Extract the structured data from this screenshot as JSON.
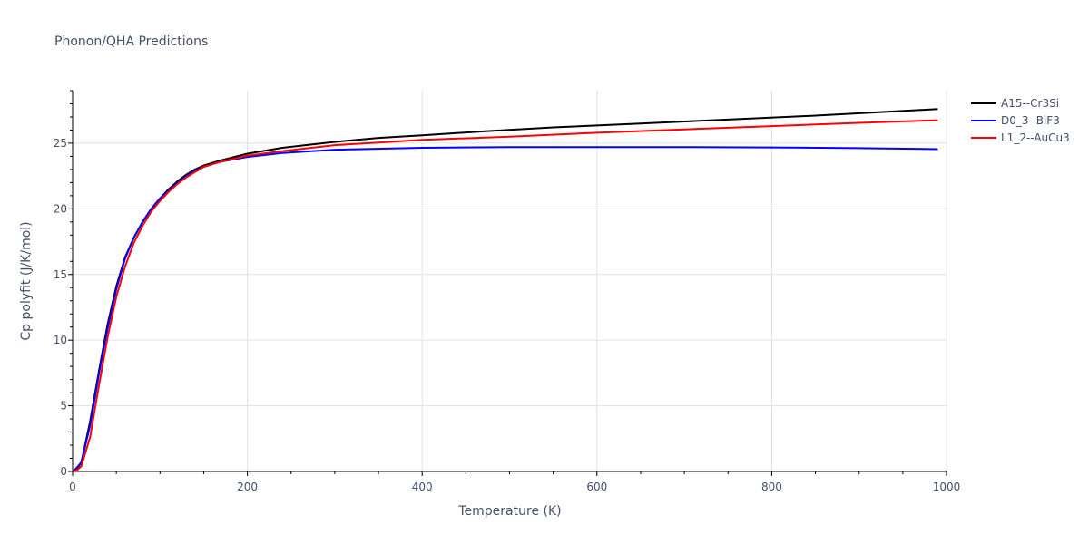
{
  "chart_data": {
    "type": "line",
    "title": "Phonon/QHA Predictions",
    "xlabel": "Temperature (K)",
    "ylabel": "Cp polyfit (J/K/mol)",
    "xlim": [
      0,
      1000
    ],
    "ylim": [
      0,
      29
    ],
    "x_ticks": [
      0,
      200,
      400,
      600,
      800,
      1000
    ],
    "y_ticks": [
      0,
      5,
      10,
      15,
      20,
      25
    ],
    "grid": true,
    "legend_position": "top-right",
    "series": [
      {
        "name": "A15--Cr3Si",
        "color": "#000000",
        "x": [
          0,
          5,
          10,
          20,
          30,
          40,
          50,
          60,
          70,
          80,
          90,
          100,
          110,
          120,
          130,
          140,
          150,
          170,
          200,
          240,
          300,
          350,
          400,
          470,
          550,
          650,
          750,
          850,
          990
        ],
        "y": [
          0,
          0.2,
          0.7,
          3.8,
          7.6,
          11.2,
          14.1,
          16.3,
          17.8,
          19.0,
          20.0,
          20.8,
          21.5,
          22.1,
          22.6,
          23.0,
          23.3,
          23.7,
          24.2,
          24.65,
          25.1,
          25.4,
          25.6,
          25.9,
          26.2,
          26.5,
          26.8,
          27.1,
          27.6
        ]
      },
      {
        "name": "D0_3--BiF3",
        "color": "#0000ff",
        "x": [
          0,
          5,
          10,
          20,
          30,
          40,
          50,
          60,
          70,
          80,
          90,
          100,
          110,
          120,
          130,
          140,
          150,
          170,
          200,
          240,
          300,
          400,
          500,
          600,
          700,
          800,
          900,
          990
        ],
        "y": [
          0,
          0.3,
          0.7,
          3.5,
          7.4,
          10.9,
          13.9,
          16.2,
          17.8,
          19.0,
          20.0,
          20.8,
          21.4,
          22.0,
          22.5,
          22.9,
          23.2,
          23.6,
          23.95,
          24.25,
          24.5,
          24.65,
          24.7,
          24.7,
          24.7,
          24.68,
          24.62,
          24.55
        ]
      },
      {
        "name": "L1_2--AuCu3",
        "color": "#ff0000",
        "x": [
          0,
          5,
          10,
          20,
          30,
          40,
          50,
          60,
          70,
          80,
          90,
          100,
          110,
          120,
          130,
          140,
          150,
          170,
          200,
          240,
          300,
          350,
          400,
          500,
          600,
          700,
          800,
          900,
          990
        ],
        "y": [
          0,
          0.1,
          0.4,
          2.6,
          6.5,
          10.2,
          13.3,
          15.6,
          17.4,
          18.7,
          19.8,
          20.6,
          21.3,
          21.9,
          22.4,
          22.8,
          23.2,
          23.6,
          24.05,
          24.4,
          24.85,
          25.05,
          25.25,
          25.5,
          25.8,
          26.05,
          26.3,
          26.55,
          26.75
        ]
      }
    ]
  }
}
